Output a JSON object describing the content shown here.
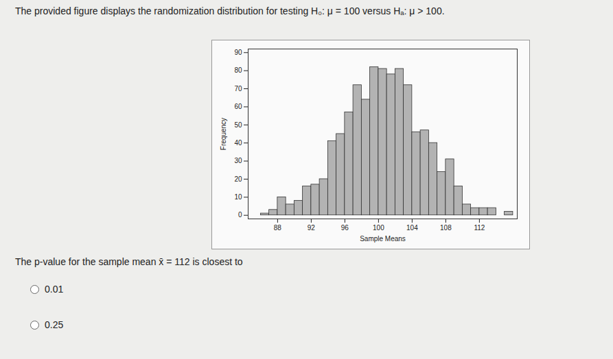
{
  "question": {
    "intro": "The provided figure displays the randomization distribution for testing H₀: μ = 100 versus Hₐ: μ > 100.",
    "prompt": "The p-value for the sample mean x̄ = 112 is closest to",
    "options": [
      "0.01",
      "0.25"
    ]
  },
  "chart_data": {
    "type": "histogram",
    "x_label": "Sample Means",
    "y_label": "Frequency",
    "bins": [
      86,
      87,
      88,
      89,
      90,
      91,
      92,
      93,
      94,
      95,
      96,
      97,
      98,
      99,
      100,
      101,
      102,
      103,
      104,
      105,
      106,
      107,
      108,
      109,
      110,
      111,
      112,
      113,
      114,
      115,
      116
    ],
    "counts": [
      1,
      3,
      10,
      6,
      8,
      16,
      17,
      20,
      41,
      45,
      57,
      72,
      64,
      82,
      81,
      78,
      81,
      72,
      46,
      47,
      40,
      24,
      31,
      16,
      6,
      4,
      4,
      4,
      0,
      2
    ],
    "color": "#b3b3b3",
    "xlim": [
      84.5,
      116.5
    ],
    "xticks": [
      88,
      92,
      96,
      100,
      104,
      108,
      112
    ],
    "ylim": [
      -2,
      92
    ],
    "yticks": [
      0,
      10,
      20,
      30,
      40,
      50,
      60,
      70,
      80,
      90
    ],
    "grid": false
  }
}
